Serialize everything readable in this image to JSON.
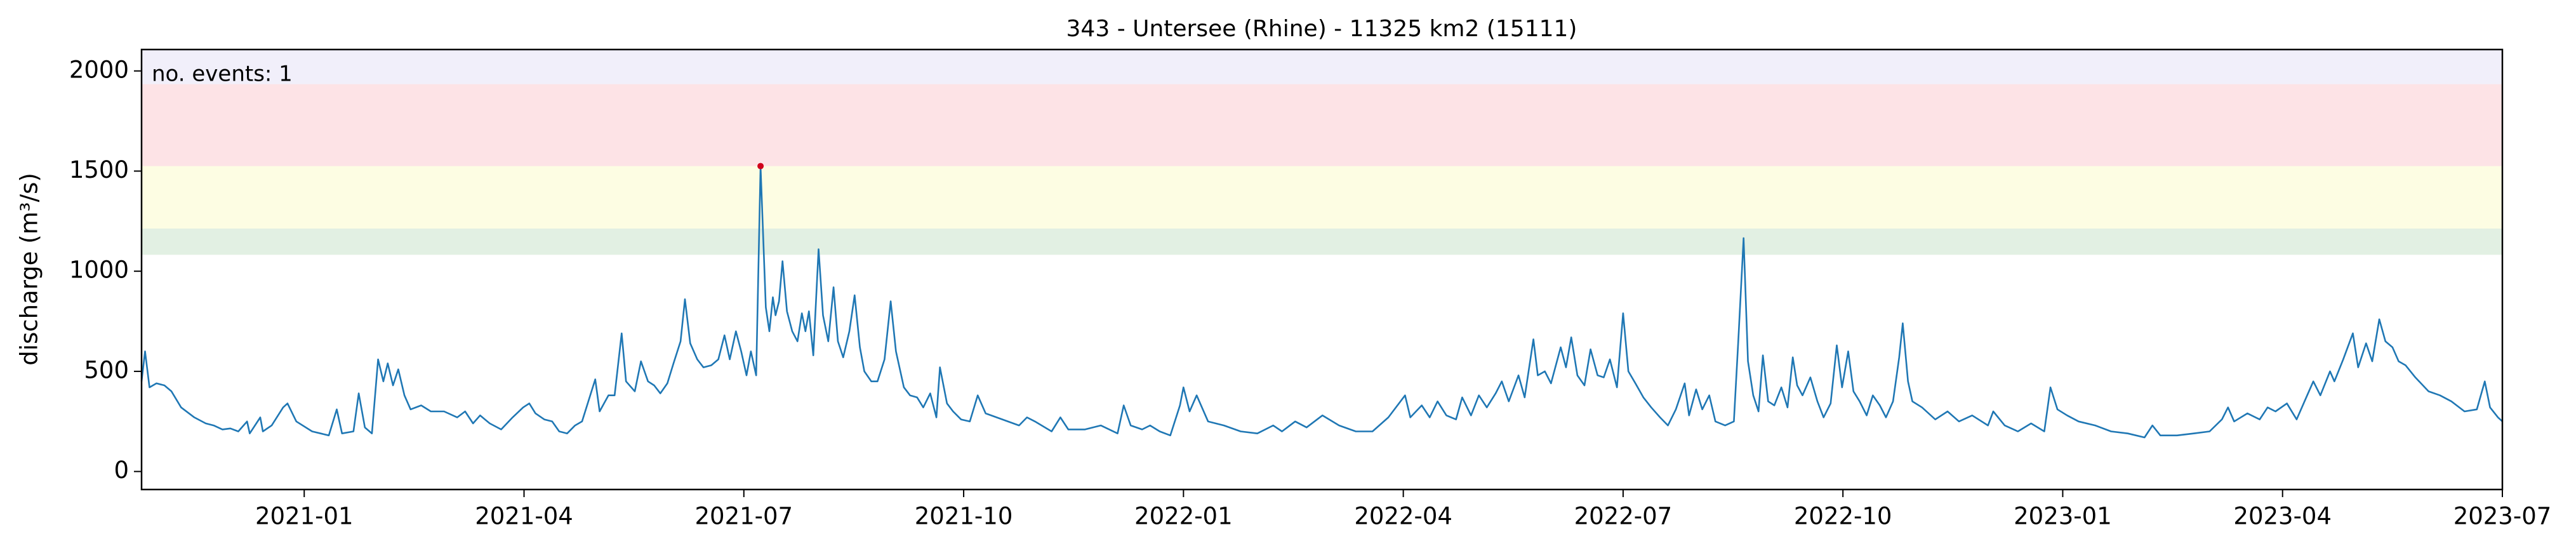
{
  "chart_data": {
    "type": "line",
    "title": "343 - Untersee (Rhine) - 11325 km2 (15111)",
    "ylabel": "discharge (m³/s)",
    "annotation": "no. events: 1",
    "annotation_color": "#d0021b",
    "xlim": [
      2020.815,
      2023.5
    ],
    "ylim": [
      -90,
      2107
    ],
    "xticks": [
      {
        "value": 2021.0,
        "label": "2021-01"
      },
      {
        "value": 2021.25,
        "label": "2021-04"
      },
      {
        "value": 2021.5,
        "label": "2021-07"
      },
      {
        "value": 2021.75,
        "label": "2021-10"
      },
      {
        "value": 2022.0,
        "label": "2022-01"
      },
      {
        "value": 2022.25,
        "label": "2022-04"
      },
      {
        "value": 2022.5,
        "label": "2022-07"
      },
      {
        "value": 2022.75,
        "label": "2022-10"
      },
      {
        "value": 2023.0,
        "label": "2023-01"
      },
      {
        "value": 2023.25,
        "label": "2023-04"
      },
      {
        "value": 2023.5,
        "label": "2023-07"
      }
    ],
    "yticks": [
      0,
      500,
      1000,
      1500,
      2000
    ],
    "grid": false,
    "bands": [
      {
        "from": 1082,
        "to": 1213,
        "color": "#e2f0e3"
      },
      {
        "from": 1213,
        "to": 1525,
        "color": "#fdfde3"
      },
      {
        "from": 1525,
        "to": 1934,
        "color": "#fde3e6"
      },
      {
        "from": 1934,
        "to": 2107,
        "color": "#f1effa"
      }
    ],
    "events": {
      "x": [
        2021.519
      ],
      "values": [
        1525
      ],
      "color": "#d0021b"
    },
    "series": [
      {
        "color": "#1f77b4",
        "x": [
          2020.815,
          2020.819,
          2020.824,
          2020.832,
          2020.841,
          2020.849,
          2020.86,
          2020.875,
          2020.888,
          2020.897,
          2020.907,
          2020.916,
          2020.925,
          2020.935,
          2020.938,
          2020.95,
          2020.953,
          2020.963,
          2020.976,
          2020.981,
          2020.991,
          2021.009,
          2021.028,
          2021.037,
          2021.043,
          2021.056,
          2021.062,
          2021.069,
          2021.077,
          2021.084,
          2021.09,
          2021.095,
          2021.101,
          2021.107,
          2021.114,
          2021.121,
          2021.133,
          2021.144,
          2021.159,
          2021.174,
          2021.183,
          2021.192,
          2021.2,
          2021.211,
          2021.224,
          2021.237,
          2021.249,
          2021.256,
          2021.263,
          2021.273,
          2021.282,
          2021.29,
          2021.299,
          2021.308,
          2021.316,
          2021.331,
          2021.336,
          2021.346,
          2021.353,
          2021.361,
          2021.366,
          2021.376,
          2021.383,
          2021.391,
          2021.398,
          2021.405,
          2021.413,
          2021.42,
          2021.428,
          2021.433,
          2021.439,
          2021.447,
          2021.454,
          2021.463,
          2021.471,
          2021.478,
          2021.484,
          2021.491,
          2021.497,
          2021.503,
          2021.508,
          2021.514,
          2021.519,
          2021.525,
          2021.529,
          2021.533,
          2021.536,
          2021.54,
          2021.544,
          2021.549,
          2021.555,
          2021.561,
          2021.566,
          2021.57,
          2021.574,
          2021.579,
          2021.585,
          2021.59,
          2021.596,
          2021.602,
          2021.607,
          2021.613,
          2021.62,
          2021.626,
          2021.632,
          2021.637,
          2021.645,
          2021.652,
          2021.66,
          2021.667,
          2021.673,
          2021.682,
          2021.689,
          2021.697,
          2021.704,
          2021.712,
          2021.719,
          2021.723,
          2021.731,
          2021.738,
          2021.747,
          2021.757,
          2021.766,
          2021.775,
          2021.794,
          2021.813,
          2021.822,
          2021.831,
          2021.85,
          2021.86,
          2021.869,
          2021.888,
          2021.906,
          2021.925,
          2021.932,
          2021.94,
          2021.953,
          2021.962,
          2021.973,
          2021.985,
          2021.996,
          2022.0,
          2022.007,
          2022.015,
          2022.028,
          2022.046,
          2022.065,
          2022.084,
          2022.102,
          2022.112,
          2022.127,
          2022.14,
          2022.158,
          2022.177,
          2022.196,
          2022.215,
          2022.233,
          2022.252,
          2022.258,
          2022.271,
          2022.28,
          2022.289,
          2022.299,
          2022.31,
          2022.317,
          2022.327,
          2022.336,
          2022.345,
          2022.355,
          2022.362,
          2022.37,
          2022.381,
          2022.388,
          2022.398,
          2022.403,
          2022.411,
          2022.418,
          2022.429,
          2022.435,
          2022.441,
          2022.448,
          2022.456,
          2022.463,
          2022.471,
          2022.478,
          2022.485,
          2022.493,
          2022.5,
          2022.506,
          2022.514,
          2022.523,
          2022.532,
          2022.542,
          2022.551,
          2022.56,
          2022.57,
          2022.575,
          2022.583,
          2022.59,
          2022.598,
          2022.605,
          2022.616,
          2022.626,
          2022.631,
          2022.637,
          2022.642,
          2022.648,
          2022.654,
          2022.659,
          2022.665,
          2022.672,
          2022.68,
          2022.687,
          2022.693,
          2022.698,
          2022.704,
          2022.713,
          2022.721,
          2022.728,
          2022.736,
          2022.743,
          2022.749,
          2022.756,
          2022.762,
          2022.769,
          2022.777,
          2022.784,
          2022.792,
          2022.799,
          2022.807,
          2022.814,
          2022.818,
          2022.824,
          2022.829,
          2022.84,
          2022.855,
          2022.869,
          2022.882,
          2022.897,
          2022.915,
          2022.921,
          2022.934,
          2022.949,
          2022.964,
          2022.979,
          2022.986,
          2022.994,
          2023.005,
          2023.018,
          2023.037,
          2023.055,
          2023.074,
          2023.093,
          2023.102,
          2023.111,
          2023.13,
          2023.149,
          2023.167,
          2023.181,
          2023.188,
          2023.195,
          2023.21,
          2023.224,
          2023.233,
          2023.242,
          2023.255,
          2023.266,
          2023.278,
          2023.285,
          2023.293,
          2023.304,
          2023.309,
          2023.319,
          2023.33,
          2023.336,
          2023.345,
          2023.352,
          2023.36,
          2023.367,
          2023.375,
          2023.382,
          2023.39,
          2023.401,
          2023.416,
          2023.429,
          2023.442,
          2023.457,
          2023.471,
          2023.48,
          2023.486,
          2023.495,
          2023.5
        ],
        "values": [
          450,
          600,
          420,
          440,
          430,
          400,
          320,
          270,
          240,
          230,
          210,
          215,
          200,
          250,
          190,
          270,
          200,
          230,
          320,
          340,
          250,
          200,
          180,
          310,
          190,
          200,
          390,
          220,
          190,
          560,
          450,
          540,
          430,
          510,
          380,
          310,
          330,
          300,
          300,
          270,
          300,
          240,
          280,
          240,
          210,
          270,
          320,
          340,
          290,
          260,
          250,
          200,
          190,
          230,
          250,
          460,
          300,
          380,
          380,
          690,
          450,
          400,
          550,
          450,
          430,
          390,
          440,
          540,
          650,
          860,
          640,
          560,
          520,
          530,
          560,
          680,
          560,
          700,
          600,
          480,
          600,
          480,
          1525,
          820,
          700,
          870,
          780,
          850,
          1050,
          800,
          700,
          650,
          790,
          700,
          800,
          580,
          1110,
          780,
          650,
          920,
          650,
          570,
          700,
          880,
          620,
          500,
          450,
          450,
          560,
          850,
          600,
          420,
          380,
          370,
          320,
          390,
          270,
          520,
          340,
          300,
          260,
          250,
          380,
          290,
          260,
          230,
          270,
          250,
          200,
          270,
          210,
          210,
          230,
          190,
          330,
          230,
          210,
          230,
          200,
          180,
          330,
          420,
          300,
          380,
          250,
          230,
          200,
          190,
          230,
          200,
          250,
          220,
          280,
          230,
          200,
          200,
          270,
          380,
          270,
          330,
          270,
          350,
          280,
          260,
          370,
          280,
          380,
          320,
          390,
          450,
          350,
          480,
          370,
          660,
          480,
          500,
          440,
          620,
          520,
          670,
          480,
          430,
          610,
          480,
          470,
          560,
          420,
          790,
          500,
          440,
          370,
          320,
          270,
          230,
          310,
          440,
          280,
          410,
          310,
          380,
          250,
          230,
          250,
          650,
          1165,
          550,
          380,
          300,
          580,
          350,
          330,
          420,
          320,
          570,
          430,
          380,
          470,
          350,
          270,
          340,
          630,
          420,
          600,
          400,
          350,
          280,
          380,
          330,
          270,
          350,
          570,
          740,
          450,
          350,
          320,
          260,
          300,
          250,
          280,
          230,
          300,
          230,
          200,
          240,
          200,
          420,
          310,
          280,
          250,
          230,
          200,
          190,
          170,
          230,
          180,
          180,
          190,
          200,
          260,
          320,
          250,
          290,
          260,
          320,
          300,
          340,
          260,
          380,
          450,
          380,
          500,
          450,
          560,
          690,
          520,
          640,
          550,
          760,
          650,
          620,
          550,
          530,
          470,
          400,
          380,
          350,
          300,
          310,
          450,
          320,
          270,
          250
        ]
      }
    ]
  }
}
